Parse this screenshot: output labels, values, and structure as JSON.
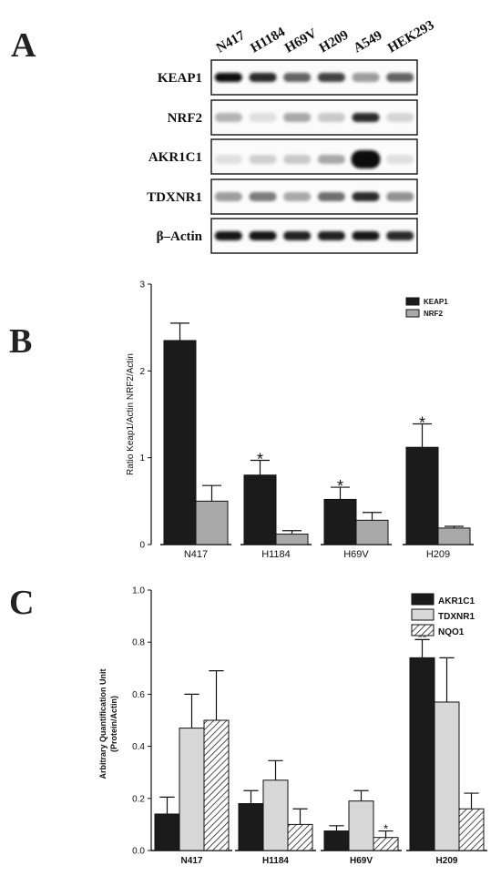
{
  "panels": {
    "a": "A",
    "b": "B",
    "c": "C"
  },
  "blot": {
    "lanes": [
      "N417",
      "H1184",
      "H69V",
      "H209",
      "A549",
      "HEK293"
    ],
    "proteins": [
      "KEAP1",
      "NRF2",
      "AKR1C1",
      "TDXNR1",
      "β–Actin"
    ],
    "intensity": [
      [
        1.0,
        0.85,
        0.6,
        0.75,
        0.35,
        0.6
      ],
      [
        0.25,
        0.05,
        0.3,
        0.15,
        0.85,
        0.1
      ],
      [
        0.05,
        0.12,
        0.15,
        0.3,
        1.0,
        0.05
      ],
      [
        0.35,
        0.5,
        0.3,
        0.55,
        0.85,
        0.4
      ],
      [
        0.95,
        0.95,
        0.9,
        0.9,
        0.95,
        0.85
      ]
    ]
  },
  "chart_data": [
    {
      "type": "bar",
      "ylabel": "Ratio Keap1/Actin NRF2/Actin",
      "ylim": [
        0,
        3
      ],
      "yticks": [
        "0",
        "1",
        "2",
        "3"
      ],
      "categories": [
        "N417",
        "H1184",
        "H69V",
        "H209"
      ],
      "series": [
        {
          "name": "KEAP1",
          "color": "#1b1b1b",
          "values": [
            2.35,
            0.8,
            0.52,
            1.12
          ],
          "errors": [
            0.2,
            0.17,
            0.14,
            0.27
          ]
        },
        {
          "name": "NRF2",
          "color": "#a9a9a9",
          "values": [
            0.5,
            0.12,
            0.28,
            0.19
          ],
          "errors": [
            0.18,
            0.04,
            0.09,
            0.02
          ]
        }
      ],
      "annotations": [
        {
          "category": "H1184",
          "series": "KEAP1",
          "text": "*"
        },
        {
          "category": "H69V",
          "series": "KEAP1",
          "text": "*"
        },
        {
          "category": "H209",
          "series": "KEAP1",
          "text": "*"
        }
      ],
      "legend": "top-right"
    },
    {
      "type": "bar",
      "ylabel": "Arbitrary Quantification Unit",
      "ylabel2": "(Protein/Actin)",
      "ylim": [
        0,
        1.0
      ],
      "yticks": [
        "0.0",
        "0.2",
        "0.4",
        "0.6",
        "0.8",
        "1.0"
      ],
      "categories": [
        "N417",
        "H1184",
        "H69V",
        "H209"
      ],
      "series": [
        {
          "name": "AKR1C1",
          "color": "#1b1b1b",
          "values": [
            0.14,
            0.18,
            0.075,
            0.74
          ],
          "errors": [
            0.065,
            0.05,
            0.02,
            0.07
          ]
        },
        {
          "name": "TDXNR1",
          "color": "#d8d8d8",
          "values": [
            0.47,
            0.27,
            0.19,
            0.57
          ],
          "errors": [
            0.13,
            0.075,
            0.04,
            0.17
          ]
        },
        {
          "name": "NQO1",
          "color": "hatch",
          "values": [
            0.5,
            0.1,
            0.05,
            0.16
          ],
          "errors": [
            0.19,
            0.06,
            0.025,
            0.06
          ]
        }
      ],
      "annotations": [
        {
          "category": "H209",
          "series": "AKR1C1",
          "text": "**"
        },
        {
          "category": "H69V",
          "series": "NQO1",
          "text": "*"
        }
      ],
      "legend": "top-right"
    }
  ]
}
